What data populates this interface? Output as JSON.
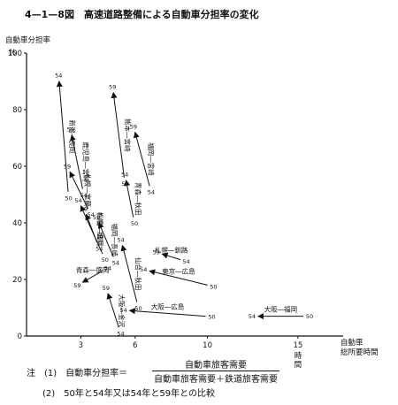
{
  "figure_title": "4—1—8図　高速道路整備による自動車分担率の変化",
  "chart_data": {
    "type": "scatter",
    "ylabel_top": "自動車分担率",
    "yunit": "%",
    "xlabel_line1": "自動車",
    "xlabel_line2": "総所要時間",
    "xunit": "時間",
    "xlim": [
      0,
      17.5
    ],
    "ylim": [
      0,
      100
    ],
    "xticks": [
      3,
      6,
      10,
      15
    ],
    "yticks": [
      0,
      20,
      40,
      60,
      80,
      100
    ],
    "routes": [
      {
        "name": "新潟―長岡",
        "from": {
          "label": "50",
          "x": 2.3,
          "y": 51
        },
        "to": {
          "label": "54",
          "x": 1.8,
          "y": 90
        }
      },
      {
        "name": "熊本―宮崎",
        "from": {
          "label": "54",
          "x": 5.4,
          "y": 56
        },
        "to": {
          "label": "59",
          "x": 4.8,
          "y": 86
        }
      },
      {
        "name": "福岡―宮崎",
        "from": {
          "label": "54",
          "x": 6.8,
          "y": 53
        },
        "to": {
          "label": "59",
          "x": 6.0,
          "y": 72
        }
      },
      {
        "name": "鹿児島―宮崎",
        "from": {
          "label": "54",
          "x": 3.1,
          "y": 52
        },
        "to": {
          "label": "59",
          "x": 2.5,
          "y": 71
        }
      },
      {
        "name": "札幌―室蘭",
        "from": {
          "label": "54",
          "x": 3.4,
          "y": 45
        },
        "to": {
          "label": "59",
          "x": 2.4,
          "y": 58
        }
      },
      {
        "name": "仙台―盛岡",
        "from": {
          "label": "50",
          "x": 4.2,
          "y": 29
        },
        "to": {
          "label": "54",
          "x": 3.0,
          "y": 46
        }
      },
      {
        "name": "札幌―旭川",
        "from": {
          "label": "54",
          "x": 3.9,
          "y": 33
        },
        "to": {
          "label": "59",
          "x": 3.3,
          "y": 43
        }
      },
      {
        "name": "福岡―長崎",
        "from": {
          "label": "54",
          "x": 4.8,
          "y": 28
        },
        "to": {
          "label": "59",
          "x": 4.0,
          "y": 40
        }
      },
      {
        "name": "青森―秋田",
        "from": {
          "label": "50",
          "x": 5.9,
          "y": 42
        },
        "to": {
          "label": "54",
          "x": 5.5,
          "y": 55
        }
      },
      {
        "name": "仙台―秋田",
        "from": {
          "label": "50",
          "x": 6.1,
          "y": 12
        },
        "to": {
          "label": "54",
          "x": 5.3,
          "y": 32
        }
      },
      {
        "name": "青森―盛岡",
        "from": {
          "label": "54",
          "x": 4.2,
          "y": 23
        },
        "to": {
          "label": "59",
          "x": 3.1,
          "y": 19
        }
      },
      {
        "name": "大阪―金沢",
        "from": {
          "label": "54",
          "x": 5.1,
          "y": 3
        },
        "to": {
          "label": "59",
          "x": 4.5,
          "y": 15
        }
      },
      {
        "name": "札幌―釧路",
        "from": {
          "label": "54",
          "x": 8.5,
          "y": 27
        },
        "to": {
          "label": "59",
          "x": 7.5,
          "y": 29
        }
      },
      {
        "name": "東京―広島",
        "from": {
          "label": "50",
          "x": 10.0,
          "y": 18
        },
        "to": {
          "label": "54",
          "x": 6.8,
          "y": 23
        }
      },
      {
        "name": "大阪―広島",
        "from": {
          "label": "50",
          "x": 9.9,
          "y": 7
        },
        "to": {
          "label": "54",
          "x": 5.7,
          "y": 9
        }
      },
      {
        "name": "大阪―福岡",
        "from": {
          "label": "50",
          "x": 15.3,
          "y": 7
        },
        "to": {
          "label": "54",
          "x": 12.8,
          "y": 7
        }
      }
    ]
  },
  "notes": {
    "note1_prefix": "注　(1)　自動車分担率＝",
    "note1_numerator": "自動車旅客需要",
    "note1_denominator": "自動車旅客需要＋鉄道旅客需要",
    "note2": "(2)　50年と54年又は54年と59年との比較"
  }
}
